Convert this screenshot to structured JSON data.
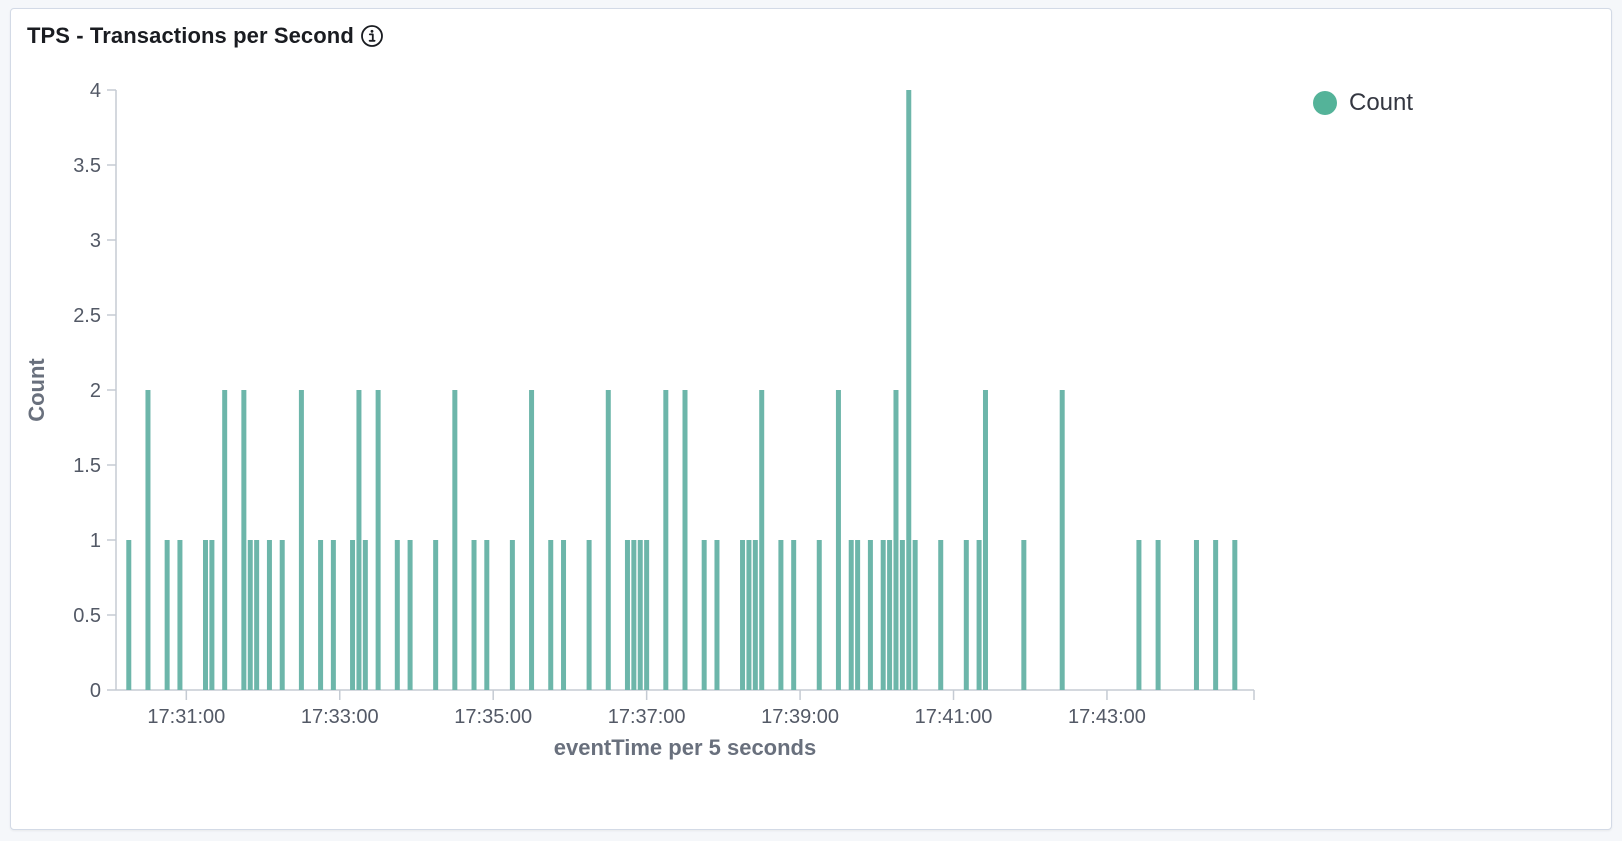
{
  "panel": {
    "title": "TPS - Transactions per Second",
    "info_icon": "info-circle-icon"
  },
  "legend": {
    "label": "Count",
    "color": "#54b399"
  },
  "chart_data": {
    "type": "bar",
    "title": "TPS - Transactions per Second",
    "xlabel": "eventTime per 5 seconds",
    "ylabel": "Count",
    "bar_color": "#6db6aa",
    "ylim": [
      0,
      4
    ],
    "yticks": [
      0,
      0.5,
      1,
      1.5,
      2,
      2.5,
      3,
      3.5,
      4
    ],
    "xlim": [
      "17:30:05",
      "17:44:55"
    ],
    "xticks": [
      "17:31:00",
      "17:33:00",
      "17:35:00",
      "17:37:00",
      "17:39:00",
      "17:41:00",
      "17:43:00"
    ],
    "series": [
      {
        "name": "Count",
        "points": [
          [
            "17:30:15",
            1
          ],
          [
            "17:30:30",
            2
          ],
          [
            "17:30:45",
            1
          ],
          [
            "17:30:55",
            1
          ],
          [
            "17:31:15",
            1
          ],
          [
            "17:31:20",
            1
          ],
          [
            "17:31:30",
            2
          ],
          [
            "17:31:45",
            2
          ],
          [
            "17:31:50",
            1
          ],
          [
            "17:31:55",
            1
          ],
          [
            "17:32:05",
            1
          ],
          [
            "17:32:15",
            1
          ],
          [
            "17:32:30",
            2
          ],
          [
            "17:32:45",
            1
          ],
          [
            "17:32:55",
            1
          ],
          [
            "17:33:10",
            1
          ],
          [
            "17:33:15",
            2
          ],
          [
            "17:33:20",
            1
          ],
          [
            "17:33:30",
            2
          ],
          [
            "17:33:45",
            1
          ],
          [
            "17:33:55",
            1
          ],
          [
            "17:34:15",
            1
          ],
          [
            "17:34:30",
            2
          ],
          [
            "17:34:45",
            1
          ],
          [
            "17:34:55",
            1
          ],
          [
            "17:35:15",
            1
          ],
          [
            "17:35:30",
            2
          ],
          [
            "17:35:45",
            1
          ],
          [
            "17:35:55",
            1
          ],
          [
            "17:36:15",
            1
          ],
          [
            "17:36:30",
            2
          ],
          [
            "17:36:45",
            1
          ],
          [
            "17:36:50",
            1
          ],
          [
            "17:36:55",
            1
          ],
          [
            "17:37:00",
            1
          ],
          [
            "17:37:15",
            2
          ],
          [
            "17:37:30",
            2
          ],
          [
            "17:37:45",
            1
          ],
          [
            "17:37:55",
            1
          ],
          [
            "17:38:15",
            1
          ],
          [
            "17:38:20",
            1
          ],
          [
            "17:38:25",
            1
          ],
          [
            "17:38:30",
            2
          ],
          [
            "17:38:45",
            1
          ],
          [
            "17:38:55",
            1
          ],
          [
            "17:39:15",
            1
          ],
          [
            "17:39:30",
            2
          ],
          [
            "17:39:40",
            1
          ],
          [
            "17:39:45",
            1
          ],
          [
            "17:39:55",
            1
          ],
          [
            "17:40:05",
            1
          ],
          [
            "17:40:10",
            1
          ],
          [
            "17:40:15",
            2
          ],
          [
            "17:40:20",
            1
          ],
          [
            "17:40:25",
            4
          ],
          [
            "17:40:30",
            1
          ],
          [
            "17:40:50",
            1
          ],
          [
            "17:41:10",
            1
          ],
          [
            "17:41:20",
            1
          ],
          [
            "17:41:25",
            2
          ],
          [
            "17:41:55",
            1
          ],
          [
            "17:42:25",
            2
          ],
          [
            "17:43:25",
            1
          ],
          [
            "17:43:40",
            1
          ],
          [
            "17:44:10",
            1
          ],
          [
            "17:44:25",
            1
          ],
          [
            "17:44:40",
            1
          ]
        ]
      }
    ]
  }
}
